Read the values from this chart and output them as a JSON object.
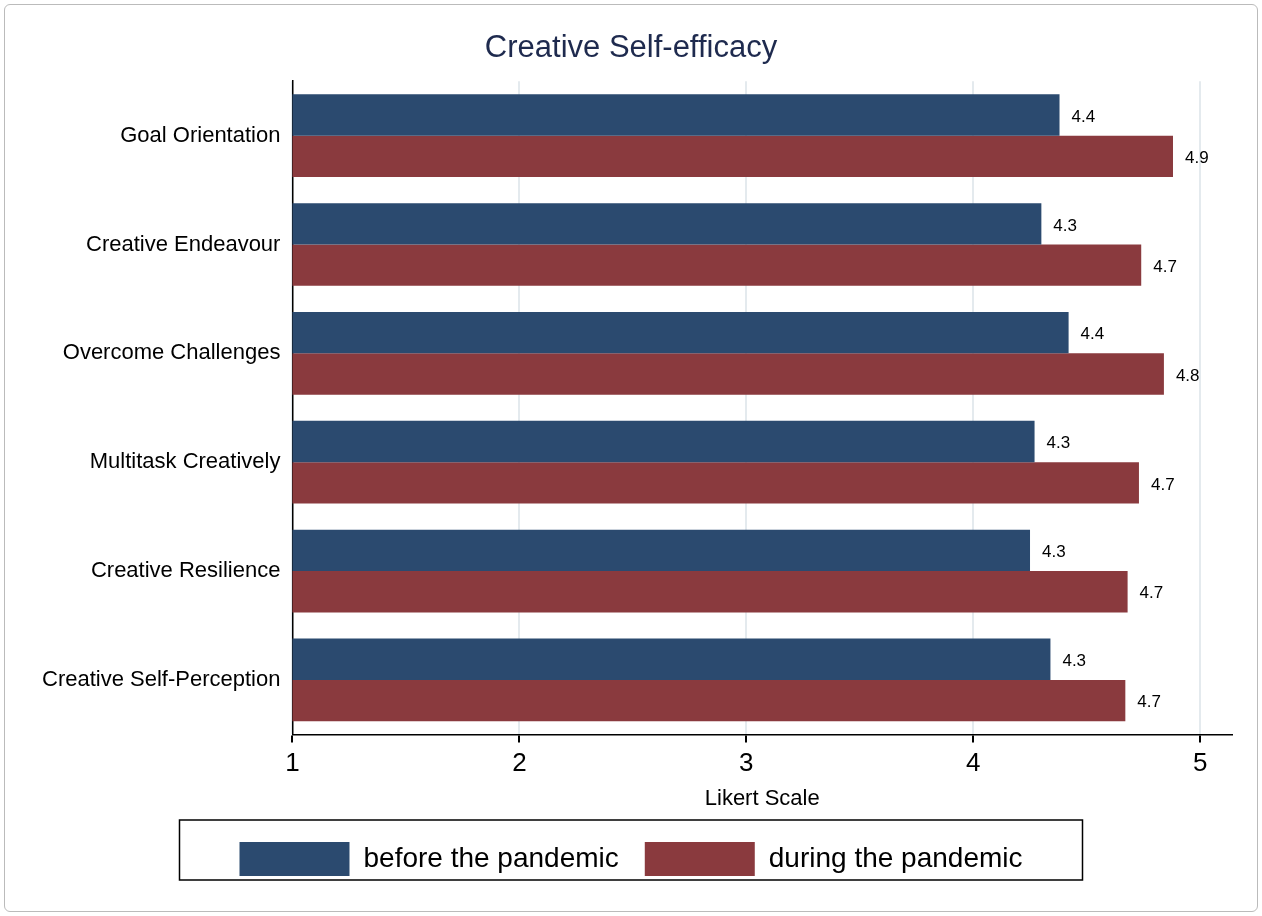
{
  "chart_data": {
    "type": "bar",
    "orientation": "horizontal",
    "title": "Creative Self-efficacy",
    "xlabel": "Likert Scale",
    "categories": [
      "Goal Orientation",
      "Creative Endeavour",
      "Overcome Challenges",
      "Multitask Creatively",
      "Creative Resilience",
      "Creative Self-Perception"
    ],
    "series": [
      {
        "name": "before the pandemic",
        "color": "#2b4a6f",
        "values": [
          4.38,
          4.3,
          4.42,
          4.27,
          4.25,
          4.34
        ],
        "value_labels": [
          "4.4",
          "4.3",
          "4.4",
          "4.3",
          "4.3",
          "4.3"
        ]
      },
      {
        "name": "during the pandemic",
        "color": "#8a3a3e",
        "values": [
          4.88,
          4.74,
          4.84,
          4.73,
          4.68,
          4.67
        ],
        "value_labels": [
          "4.9",
          "4.7",
          "4.8",
          "4.7",
          "4.7",
          "4.7"
        ]
      }
    ],
    "xlim": [
      1,
      5.14
    ],
    "xticks": [
      1,
      2,
      3,
      4,
      5
    ],
    "grid": "x",
    "legend": "bottom"
  }
}
